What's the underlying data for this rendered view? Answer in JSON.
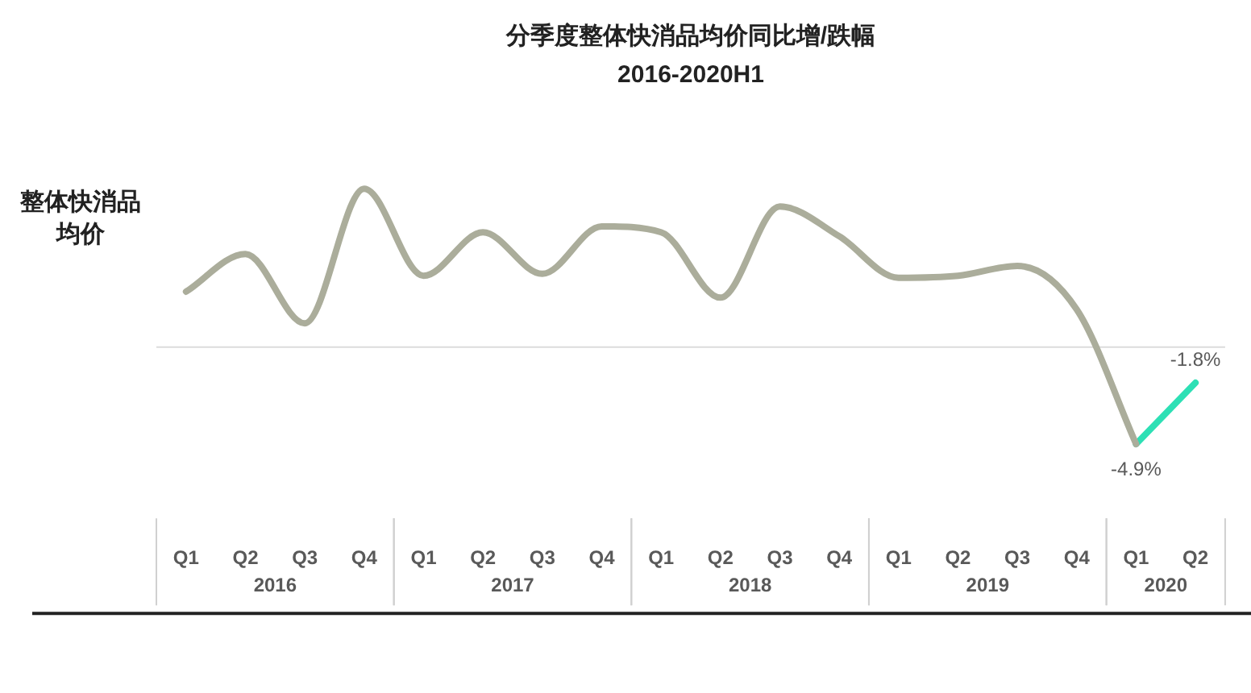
{
  "chart_data": {
    "type": "line",
    "title": "分季度整体快消品均价同比增/跌幅",
    "subtitle": "2016-2020H1",
    "ylabel": "整体快消品均价",
    "categories": [
      "Q1",
      "Q2",
      "Q3",
      "Q4",
      "Q1",
      "Q2",
      "Q3",
      "Q4",
      "Q1",
      "Q2",
      "Q3",
      "Q4",
      "Q1",
      "Q2",
      "Q3",
      "Q4",
      "Q1",
      "Q2"
    ],
    "annotations": [
      "2016",
      "2017",
      "2018",
      "2019",
      "2020"
    ],
    "series": [
      {
        "color": "#abad9b",
        "values": [
          2.8,
          4.7,
          1.2,
          8.0,
          3.6,
          5.8,
          3.7,
          6.1,
          5.8,
          2.5,
          7.1,
          5.6,
          3.5,
          3.6,
          4.1,
          1.9,
          -4.9,
          null
        ]
      },
      {
        "color": "#2de0b5",
        "values": [
          null,
          null,
          null,
          null,
          null,
          null,
          null,
          null,
          null,
          null,
          null,
          null,
          null,
          null,
          null,
          null,
          -4.9,
          -1.8
        ],
        "value_labels": [
          null,
          null,
          null,
          null,
          null,
          null,
          null,
          null,
          null,
          null,
          null,
          null,
          null,
          null,
          null,
          null,
          "-4.9%",
          "-1.8%"
        ]
      }
    ],
    "ref_lines": [
      {
        "axis": "y",
        "value": 0,
        "color": "#dcdcdc"
      }
    ],
    "grid": false,
    "legend": false,
    "tick_labels": "x",
    "marker": "none",
    "line_style": "solid"
  }
}
